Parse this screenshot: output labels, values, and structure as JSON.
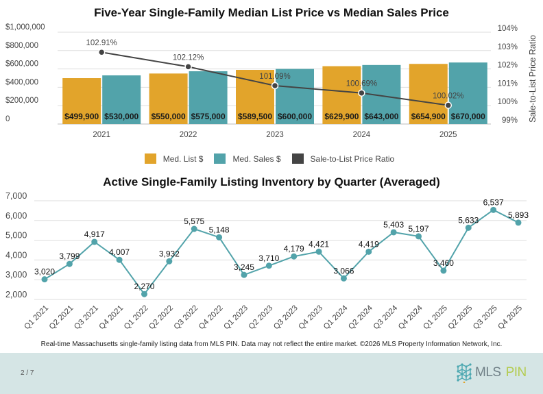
{
  "chart_data": [
    {
      "type": "bar",
      "title": "Five-Year Single-Family Median List Price vs Median Sales Price",
      "categories": [
        "2021",
        "2022",
        "2023",
        "2024",
        "2025"
      ],
      "series": [
        {
          "name": "Med. List $",
          "type": "bar",
          "axis": "left",
          "color": "#e2a42b",
          "values": [
            499900,
            550000,
            589500,
            629900,
            654900
          ],
          "labels": [
            "$499,900",
            "$550,000",
            "$589,500",
            "$629,900",
            "$654,900"
          ]
        },
        {
          "name": "Med. Sales $",
          "type": "bar",
          "axis": "left",
          "color": "#52a3aa",
          "values": [
            530000,
            575000,
            600000,
            643000,
            670000
          ],
          "labels": [
            "$530,000",
            "$575,000",
            "$600,000",
            "$643,000",
            "$670,000"
          ]
        },
        {
          "name": "Sale-to-List Price Ratio",
          "type": "line",
          "axis": "right",
          "color": "#444444",
          "values": [
            102.91,
            102.12,
            101.09,
            100.69,
            100.02
          ],
          "labels": [
            "102.91%",
            "102.12%",
            "101.09%",
            "100.69%",
            "100.02%"
          ]
        }
      ],
      "left_axis": {
        "ylim": [
          0,
          1000000
        ],
        "ticks": [
          0,
          200000,
          400000,
          600000,
          800000,
          1000000
        ],
        "tick_labels": [
          "0",
          "$200,000",
          "$400,000",
          "$600,000",
          "$800,000",
          "$1,000,000"
        ]
      },
      "right_axis": {
        "label": "Sale-to-List Price Ratio",
        "ylim": [
          99,
          104
        ],
        "ticks": [
          99,
          100,
          101,
          102,
          103,
          104
        ],
        "tick_labels": [
          "99%",
          "100%",
          "101%",
          "102%",
          "103%",
          "104%"
        ]
      },
      "grid": true,
      "legend": "bottom",
      "legend_entries": [
        "Med. List $",
        "Med. Sales $",
        "Sale-to-List Price Ratio"
      ]
    },
    {
      "type": "line",
      "title": "Active Single-Family Listing Inventory by Quarter (Averaged)",
      "categories": [
        "Q1 2021",
        "Q2 2021",
        "Q3 2021",
        "Q4 2021",
        "Q1 2022",
        "Q2 2022",
        "Q3 2022",
        "Q4 2022",
        "Q1 2023",
        "Q2 2023",
        "Q3 2023",
        "Q4 2023",
        "Q1 2024",
        "Q2 2024",
        "Q3 2024",
        "Q4 2024",
        "Q1 2025",
        "Q2 2025",
        "Q3 2025",
        "Q4 2025"
      ],
      "series": [
        {
          "name": "Inventory",
          "color": "#52a3aa",
          "values": [
            3020,
            3799,
            4917,
            4007,
            2270,
            3932,
            5575,
            5148,
            3245,
            3710,
            4179,
            4421,
            3066,
            4419,
            5403,
            5197,
            3460,
            5633,
            6537,
            5893
          ],
          "labels": [
            "3,020",
            "3,799",
            "4,917",
            "4,007",
            "2,270",
            "3,932",
            "5,575",
            "5,148",
            "3,245",
            "3,710",
            "4,179",
            "4,421",
            "3,066",
            "4,419",
            "5,403",
            "5,197",
            "3,460",
            "5,633",
            "6,537",
            "5,893"
          ]
        }
      ],
      "ylim": [
        2000,
        7000
      ],
      "ticks": [
        2000,
        3000,
        4000,
        5000,
        6000,
        7000
      ],
      "tick_labels": [
        "2,000",
        "3,000",
        "4,000",
        "5,000",
        "6,000",
        "7,000"
      ],
      "grid": true,
      "xlabel": "",
      "ylabel": ""
    }
  ],
  "footer": {
    "note": "Real-time Massachusetts single-family listing data from MLS PIN. Data may not reflect the entire market. ©2026 MLS Property Information Network, Inc.",
    "page": "2 / 7",
    "logo_mls": "MLS",
    "logo_pin": "PIN"
  }
}
